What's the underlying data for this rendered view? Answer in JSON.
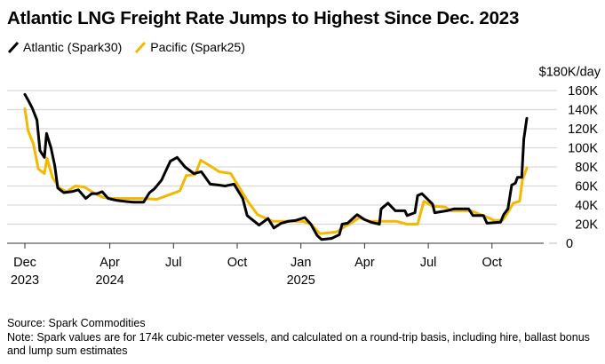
{
  "chart_data": {
    "type": "line",
    "title": "Atlantic LNG Freight Rate Jumps to Highest Since Dec. 2023",
    "ylabel": "$180K/day",
    "xlabel": "",
    "ylim": [
      0,
      180
    ],
    "yticks": [
      {
        "v": 0,
        "label": "0"
      },
      {
        "v": 20,
        "label": "20K"
      },
      {
        "v": 40,
        "label": "40K"
      },
      {
        "v": 60,
        "label": "60K"
      },
      {
        "v": 80,
        "label": "80K"
      },
      {
        "v": 100,
        "label": "100K"
      },
      {
        "v": 120,
        "label": "120K"
      },
      {
        "v": 140,
        "label": "140K"
      },
      {
        "v": 160,
        "label": "160K"
      }
    ],
    "x_unit": "months since Dec 2023",
    "xlim": [
      -0.3,
      24.5
    ],
    "xticks": [
      {
        "m": 0,
        "label": "Dec",
        "year": "2023"
      },
      {
        "m": 4,
        "label": "Apr",
        "year": "2024"
      },
      {
        "m": 7,
        "label": "Jul",
        "year": ""
      },
      {
        "m": 10,
        "label": "Oct",
        "year": ""
      },
      {
        "m": 13,
        "label": "Jan",
        "year": "2025"
      },
      {
        "m": 16,
        "label": "Apr",
        "year": ""
      },
      {
        "m": 19,
        "label": "Jul",
        "year": ""
      },
      {
        "m": 22,
        "label": "Oct",
        "year": ""
      }
    ],
    "grid": true,
    "legend_position": "top-left",
    "series": [
      {
        "name": "Atlantic (Spark30)",
        "color": "#000000",
        "points": [
          [
            0,
            156
          ],
          [
            0.2,
            148
          ],
          [
            0.36,
            141
          ],
          [
            0.57,
            129
          ],
          [
            0.71,
            97
          ],
          [
            0.92,
            90
          ],
          [
            1.02,
            115
          ],
          [
            1.23,
            100
          ],
          [
            1.41,
            81
          ],
          [
            1.55,
            58
          ],
          [
            1.83,
            53
          ],
          [
            2.2,
            54
          ],
          [
            2.52,
            56
          ],
          [
            2.87,
            47
          ],
          [
            3.15,
            52
          ],
          [
            3.4,
            52
          ],
          [
            3.64,
            54
          ],
          [
            3.92,
            47
          ],
          [
            4.3,
            45
          ],
          [
            4.69,
            44
          ],
          [
            5.1,
            43
          ],
          [
            5.59,
            43
          ],
          [
            5.87,
            53
          ],
          [
            6.1,
            57
          ],
          [
            6.43,
            66
          ],
          [
            6.85,
            86
          ],
          [
            7.17,
            90
          ],
          [
            7.54,
            80
          ],
          [
            7.96,
            73
          ],
          [
            8.31,
            75
          ],
          [
            8.73,
            62
          ],
          [
            9.1,
            61
          ],
          [
            9.43,
            60
          ],
          [
            9.85,
            62
          ],
          [
            10.26,
            47
          ],
          [
            10.47,
            29
          ],
          [
            11.03,
            19
          ],
          [
            11.45,
            26
          ],
          [
            11.73,
            16
          ],
          [
            12.08,
            21
          ],
          [
            12.4,
            23
          ],
          [
            12.77,
            24
          ],
          [
            13.18,
            27
          ],
          [
            13.47,
            20
          ],
          [
            13.77,
            8
          ],
          [
            13.97,
            4
          ],
          [
            14.44,
            5
          ],
          [
            14.81,
            9
          ],
          [
            14.94,
            20
          ],
          [
            15.2,
            21
          ],
          [
            15.65,
            30
          ],
          [
            15.98,
            25
          ],
          [
            16.3,
            22
          ],
          [
            16.7,
            20
          ],
          [
            16.78,
            36
          ],
          [
            17.1,
            42
          ],
          [
            17.45,
            34
          ],
          [
            17.9,
            34
          ],
          [
            18.0,
            29
          ],
          [
            18.37,
            32
          ],
          [
            18.5,
            50
          ],
          [
            18.7,
            52
          ],
          [
            19.2,
            41
          ],
          [
            19.3,
            32
          ],
          [
            19.87,
            34
          ],
          [
            20.2,
            36
          ],
          [
            20.9,
            36
          ],
          [
            21.1,
            29
          ],
          [
            21.6,
            29
          ],
          [
            21.76,
            21
          ],
          [
            22.4,
            22
          ],
          [
            22.55,
            30
          ],
          [
            22.75,
            36
          ],
          [
            22.93,
            61
          ],
          [
            23.1,
            63
          ],
          [
            23.2,
            69
          ],
          [
            23.4,
            69
          ],
          [
            23.5,
            109
          ],
          [
            23.64,
            131
          ]
        ]
      },
      {
        "name": "Pacific (Spark25)",
        "color": "#F5B800",
        "points": [
          [
            0,
            141
          ],
          [
            0.15,
            118
          ],
          [
            0.4,
            104
          ],
          [
            0.63,
            78
          ],
          [
            0.92,
            73
          ],
          [
            1.04,
            89
          ],
          [
            1.3,
            69
          ],
          [
            1.62,
            58
          ],
          [
            1.97,
            54
          ],
          [
            2.38,
            60
          ],
          [
            2.8,
            59
          ],
          [
            3.3,
            52
          ],
          [
            3.7,
            48
          ],
          [
            4.14,
            47
          ],
          [
            4.8,
            47
          ],
          [
            5.53,
            47
          ],
          [
            6.2,
            46
          ],
          [
            6.7,
            50
          ],
          [
            7.3,
            55
          ],
          [
            7.6,
            71
          ],
          [
            8.03,
            72
          ],
          [
            8.28,
            87
          ],
          [
            8.73,
            81
          ],
          [
            9.15,
            75
          ],
          [
            9.7,
            73
          ],
          [
            10.0,
            62
          ],
          [
            10.5,
            44
          ],
          [
            10.96,
            30
          ],
          [
            11.67,
            23
          ],
          [
            12.2,
            23
          ],
          [
            12.77,
            23
          ],
          [
            13.1,
            23
          ],
          [
            13.47,
            20
          ],
          [
            13.9,
            10
          ],
          [
            14.3,
            11
          ],
          [
            14.7,
            12
          ],
          [
            15.1,
            18
          ],
          [
            15.44,
            22
          ],
          [
            15.75,
            27
          ],
          [
            16.2,
            23
          ],
          [
            16.8,
            23
          ],
          [
            17.5,
            23
          ],
          [
            18.0,
            20
          ],
          [
            18.5,
            20
          ],
          [
            18.79,
            44
          ],
          [
            19.2,
            39
          ],
          [
            19.8,
            38
          ],
          [
            20.05,
            34
          ],
          [
            20.5,
            34
          ],
          [
            21.0,
            34
          ],
          [
            21.7,
            28
          ],
          [
            22.1,
            24
          ],
          [
            22.5,
            24
          ],
          [
            22.8,
            34
          ],
          [
            23.0,
            42
          ],
          [
            23.3,
            44
          ],
          [
            23.43,
            66
          ],
          [
            23.64,
            79
          ]
        ]
      }
    ],
    "source": "Source: Spark Commodities",
    "note": "Note: Spark values are for 174k cubic-meter vessels, and calculated on a round-trip basis, including hire, ballast bonus and lump sum estimates"
  }
}
